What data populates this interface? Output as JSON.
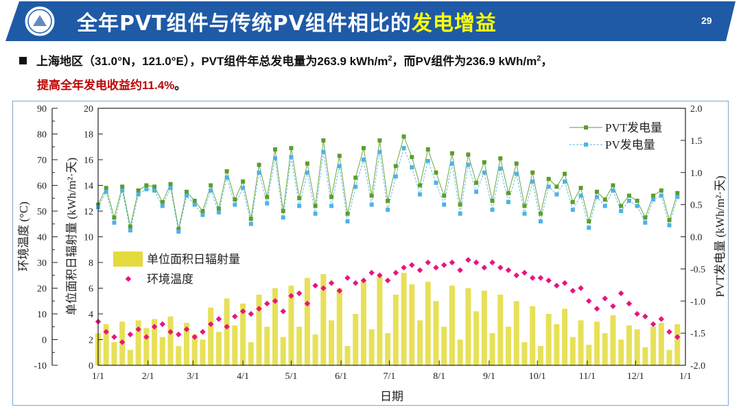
{
  "header": {
    "title_main": "全年PVT组件与传统PV组件相比的",
    "title_highlight": "发电增益",
    "page_number": "29",
    "logo_icon": "university-seal-icon",
    "bar_color": "#1f5aa6"
  },
  "summary": {
    "text_a": "上海地区（31.0°N，121.0°E），PVT组件年总发电量为263.9 kWh/m",
    "sup1": "2",
    "text_b": "，而PV组件为236.9 kWh/m",
    "sup2": "2",
    "text_c": "，",
    "highlight": "提高全年发电收益约11.4%",
    "end": "。"
  },
  "chart_data": {
    "type": "bar+line+scatter",
    "xlabel": "日期",
    "x_ticks": [
      "1/1",
      "2/1",
      "3/1",
      "4/1",
      "5/1",
      "6/1",
      "7/1",
      "8/1",
      "9/1",
      "10/1",
      "11/1",
      "12/1",
      "1/1"
    ],
    "axes": {
      "temperature": {
        "label": "环境温度 (°C)",
        "range": [
          -10,
          90
        ],
        "ticks": [
          "90",
          "80",
          "70",
          "60",
          "50",
          "40",
          "30",
          "20",
          "10",
          "0",
          "-10"
        ]
      },
      "radiation": {
        "label": "单位面积日辐射量 (kWh/m²·天)",
        "range": [
          0,
          20
        ],
        "ticks": [
          "20",
          "18",
          "16",
          "14",
          "12",
          "10",
          "8",
          "6",
          "4",
          "2",
          "0"
        ]
      },
      "right": {
        "label": "PVT发电量 (kWh/m²·天)",
        "range": [
          -2.0,
          2.0
        ],
        "ticks": [
          "2.0",
          "1.5",
          "1.0",
          "0.5",
          "0.0",
          "-0.5",
          "-1.0",
          "-1.5",
          "-2.0"
        ]
      }
    },
    "legend_top_right": [
      "PVT发电量",
      "PV发电量"
    ],
    "legend_bottom_left": [
      "单位面积日辐射量",
      "环境温度"
    ],
    "colors": {
      "pvt": "#5a9e2a",
      "pv": "#4db3e6",
      "radiation": "#e3da3b",
      "temperature": "#e8157f"
    },
    "day_of_year": [
      1,
      6,
      11,
      16,
      21,
      26,
      31,
      36,
      41,
      46,
      51,
      56,
      61,
      66,
      71,
      76,
      81,
      86,
      91,
      96,
      101,
      106,
      111,
      116,
      121,
      126,
      131,
      136,
      141,
      146,
      151,
      156,
      161,
      166,
      171,
      176,
      181,
      186,
      191,
      196,
      201,
      206,
      211,
      216,
      221,
      226,
      231,
      236,
      241,
      246,
      251,
      256,
      261,
      266,
      271,
      276,
      281,
      286,
      291,
      296,
      301,
      306,
      311,
      316,
      321,
      326,
      331,
      336,
      341,
      346,
      351,
      356,
      361
    ],
    "series": [
      {
        "name": "PVT发电量",
        "axis": "radiation",
        "values": [
          12.5,
          13.8,
          11.5,
          13.9,
          10.8,
          13.6,
          14.0,
          13.9,
          12.7,
          14.1,
          10.6,
          13.5,
          12.8,
          12.0,
          14.0,
          12.2,
          15.1,
          12.9,
          14.3,
          11.4,
          15.6,
          13.1,
          16.8,
          12.0,
          16.9,
          13.0,
          15.7,
          12.4,
          17.5,
          13.1,
          16.3,
          11.8,
          14.6,
          16.9,
          13.2,
          17.5,
          12.8,
          15.5,
          17.8,
          16.2,
          14.0,
          16.8,
          15.0,
          13.2,
          16.5,
          12.5,
          16.4,
          14.2,
          15.8,
          12.8,
          16.1,
          13.4,
          15.7,
          12.4,
          15.0,
          11.8,
          14.5,
          13.9,
          14.9,
          12.7,
          13.8,
          11.2,
          13.5,
          12.9,
          14.0,
          12.4,
          13.2,
          12.8,
          11.5,
          13.2,
          13.6,
          11.3,
          13.4
        ]
      },
      {
        "name": "PV发电量",
        "axis": "radiation",
        "values": [
          12.3,
          13.5,
          11.1,
          13.6,
          10.5,
          13.3,
          13.7,
          13.6,
          12.4,
          13.8,
          10.4,
          13.2,
          12.5,
          11.7,
          13.6,
          11.9,
          14.6,
          12.5,
          13.8,
          11.0,
          15.0,
          12.6,
          16.1,
          11.5,
          16.2,
          12.4,
          15.0,
          11.8,
          16.6,
          12.4,
          15.5,
          11.2,
          13.9,
          16.0,
          12.5,
          16.6,
          12.1,
          14.7,
          16.9,
          15.4,
          13.3,
          15.9,
          14.2,
          12.5,
          15.7,
          11.8,
          15.6,
          13.5,
          15.0,
          12.1,
          15.3,
          12.7,
          14.9,
          11.8,
          14.3,
          11.2,
          13.9,
          13.3,
          14.3,
          12.1,
          13.2,
          10.7,
          13.1,
          12.4,
          13.6,
          12.0,
          12.8,
          12.4,
          11.1,
          12.9,
          13.2,
          10.9,
          13.1
        ]
      },
      {
        "name": "单位面积日辐射量",
        "axis": "radiation",
        "values": [
          2.5,
          3.2,
          1.8,
          3.4,
          1.2,
          3.5,
          2.9,
          3.6,
          2.2,
          3.8,
          1.5,
          3.3,
          2.4,
          2.0,
          4.5,
          2.6,
          5.2,
          3.1,
          4.8,
          1.8,
          5.5,
          3.0,
          6.0,
          2.2,
          6.2,
          3.0,
          6.8,
          2.4,
          7.1,
          3.5,
          6.0,
          1.5,
          4.0,
          6.6,
          2.8,
          6.9,
          2.5,
          5.5,
          7.2,
          6.3,
          3.5,
          6.5,
          5.0,
          3.0,
          6.2,
          2.0,
          6.0,
          4.2,
          5.8,
          2.5,
          5.5,
          3.0,
          5.0,
          1.8,
          4.6,
          1.5,
          4.0,
          3.2,
          4.4,
          2.2,
          3.5,
          1.6,
          3.4,
          2.5,
          3.9,
          2.0,
          3.1,
          2.8,
          1.4,
          3.0,
          3.3,
          1.2,
          3.2
        ]
      },
      {
        "name": "环境温度",
        "axis": "temperature",
        "values": [
          7,
          3,
          1,
          -1,
          2,
          4,
          1,
          5,
          6,
          3,
          2,
          4,
          1,
          3,
          6,
          8,
          5,
          9,
          11,
          10,
          12,
          14,
          15,
          11,
          17,
          18,
          14,
          21,
          20,
          22,
          19,
          24,
          22,
          23,
          26,
          25,
          23,
          26,
          28,
          29,
          27,
          30,
          28,
          29,
          30,
          27,
          31,
          30,
          28,
          30,
          28,
          27,
          25,
          26,
          24,
          24,
          23,
          21,
          22,
          19,
          20,
          15,
          12,
          16,
          13,
          18,
          14,
          10,
          9,
          6,
          8,
          3,
          1
        ]
      }
    ]
  }
}
